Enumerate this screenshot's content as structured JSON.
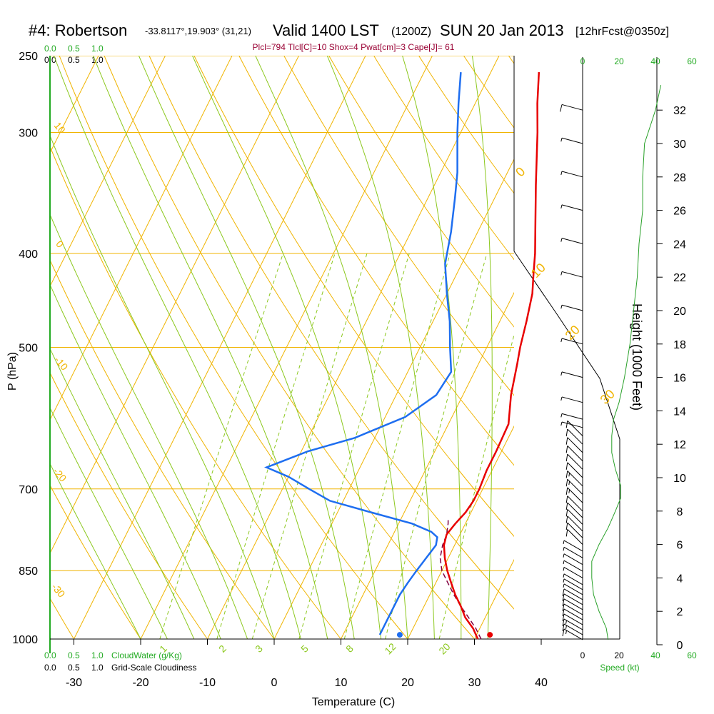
{
  "header": {
    "station": "#4: Robertson",
    "location": "-33.8117°,19.903° (31,21)",
    "valid": "Valid 1400 LST",
    "zulu": "(1200Z)",
    "date": "SUN 20 Jan 2013",
    "forecast": "[12hrFcst@0350z]",
    "indices": "Plcl=794 Tlcl[C]=10 Shox=4 Pwat[cm]=3 Cape[J]= 61"
  },
  "cloud_scale": {
    "top_green": [
      "0.0",
      "0.5",
      "1.0"
    ],
    "top_black": [
      "0.0",
      "0.5",
      "1.0"
    ],
    "bottom_green": [
      "0.0",
      "0.5",
      "1.0"
    ],
    "bottom_black": [
      "0.0",
      "0.5",
      "1.0"
    ],
    "cloudwater_label": "CloudWater (g/Kg)",
    "cloudiness_label": "Grid-Scale Cloudiness"
  },
  "colors": {
    "isotherm": "#f0b400",
    "dry_adiabat": "#f0b400",
    "moist_adiabat": "#8cc81e",
    "mixing_ratio": "#8cc81e",
    "temperature": "#e80000",
    "dewpoint": "#1e6ef0",
    "parcel": "#800040",
    "speed": "#28a028",
    "title": "#000000",
    "indices": "#990033",
    "green_text": "#22aa22"
  },
  "chart_data": {
    "type": "line",
    "xlabel": "Temperature (C)",
    "ylabel": "P (hPa)",
    "y2label": "Height (1000 Feet)",
    "speed_label": "Speed (kt)",
    "x_ticks": [
      "-30",
      "-20",
      "-10",
      "0",
      "10",
      "20",
      "30",
      "40"
    ],
    "x_tick_values": [
      -30,
      -20,
      -10,
      0,
      10,
      20,
      30,
      40
    ],
    "p_ticks": [
      "250",
      "300",
      "400",
      "500",
      "700",
      "850",
      "1000"
    ],
    "p_tick_values": [
      250,
      300,
      400,
      500,
      700,
      850,
      1000
    ],
    "height_ticks": [
      "0",
      "2",
      "4",
      "6",
      "8",
      "10",
      "12",
      "14",
      "16",
      "18",
      "20",
      "22",
      "24",
      "26",
      "28",
      "30",
      "32"
    ],
    "height_tick_values": [
      0,
      2,
      4,
      6,
      8,
      10,
      12,
      14,
      16,
      18,
      20,
      22,
      24,
      26,
      28,
      30,
      32
    ],
    "speed_ticks_top_black": [
      "0"
    ],
    "speed_ticks_top_green": [
      "20",
      "40",
      "60"
    ],
    "speed_ticks_bottom_black": [
      "0",
      "20",
      "40"
    ],
    "speed_ticks_bottom_green": [
      "60"
    ],
    "dry_adiabat_labels": [
      "10",
      "0",
      "-10",
      "-20",
      "-30"
    ],
    "moist_adiabat_labels": [
      "0",
      "10",
      "20",
      "30"
    ],
    "mixing_ratio_labels": [
      "1",
      "2",
      "3",
      "5",
      "8",
      "12",
      "20"
    ],
    "mixing_ratio_values": [
      1,
      2,
      3,
      5,
      8,
      12,
      20
    ],
    "temperature_profile": [
      {
        "p": 1000,
        "t": 30.5
      },
      {
        "p": 975,
        "t": 29.0
      },
      {
        "p": 950,
        "t": 27.0
      },
      {
        "p": 925,
        "t": 25.5
      },
      {
        "p": 900,
        "t": 23.8
      },
      {
        "p": 875,
        "t": 22.3
      },
      {
        "p": 850,
        "t": 20.8
      },
      {
        "p": 825,
        "t": 19.5
      },
      {
        "p": 800,
        "t": 18.4
      },
      {
        "p": 780,
        "t": 18.0
      },
      {
        "p": 760,
        "t": 18.5
      },
      {
        "p": 740,
        "t": 19.2
      },
      {
        "p": 720,
        "t": 19.5
      },
      {
        "p": 700,
        "t": 19.5
      },
      {
        "p": 670,
        "t": 19.2
      },
      {
        "p": 640,
        "t": 19.2
      },
      {
        "p": 600,
        "t": 19.0
      },
      {
        "p": 560,
        "t": 17.2
      },
      {
        "p": 520,
        "t": 15.8
      },
      {
        "p": 500,
        "t": 15.0
      },
      {
        "p": 470,
        "t": 14.0
      },
      {
        "p": 440,
        "t": 12.8
      },
      {
        "p": 420,
        "t": 11.5
      },
      {
        "p": 400,
        "t": 10.2
      },
      {
        "p": 370,
        "t": 7.8
      },
      {
        "p": 340,
        "t": 5.2
      },
      {
        "p": 300,
        "t": 1.5
      },
      {
        "p": 280,
        "t": -0.7
      },
      {
        "p": 260,
        "t": -2.8
      }
    ],
    "dewpoint_profile": [
      {
        "p": 990,
        "t": 15.5
      },
      {
        "p": 975,
        "t": 15.5
      },
      {
        "p": 950,
        "t": 15.5
      },
      {
        "p": 925,
        "t": 15.5
      },
      {
        "p": 900,
        "t": 15.5
      },
      {
        "p": 875,
        "t": 15.8
      },
      {
        "p": 850,
        "t": 16.2
      },
      {
        "p": 825,
        "t": 16.7
      },
      {
        "p": 800,
        "t": 17.2
      },
      {
        "p": 785,
        "t": 16.8
      },
      {
        "p": 775,
        "t": 15.5
      },
      {
        "p": 760,
        "t": 12.0
      },
      {
        "p": 740,
        "t": 5.0
      },
      {
        "p": 720,
        "t": -2.0
      },
      {
        "p": 700,
        "t": -6.0
      },
      {
        "p": 680,
        "t": -10.0
      },
      {
        "p": 665,
        "t": -14.0
      },
      {
        "p": 640,
        "t": -9.0
      },
      {
        "p": 620,
        "t": -3.0
      },
      {
        "p": 590,
        "t": 3.0
      },
      {
        "p": 560,
        "t": 6.0
      },
      {
        "p": 530,
        "t": 6.5
      },
      {
        "p": 500,
        "t": 4.5
      },
      {
        "p": 470,
        "t": 2.5
      },
      {
        "p": 440,
        "t": 0.0
      },
      {
        "p": 410,
        "t": -2.5
      },
      {
        "p": 380,
        "t": -4.0
      },
      {
        "p": 350,
        "t": -6.0
      },
      {
        "p": 330,
        "t": -7.5
      },
      {
        "p": 300,
        "t": -10.5
      },
      {
        "p": 280,
        "t": -12.5
      },
      {
        "p": 260,
        "t": -14.5
      }
    ],
    "parcel_profile": [
      {
        "p": 1000,
        "t": 31.0
      },
      {
        "p": 975,
        "t": 29.4
      },
      {
        "p": 950,
        "t": 27.5
      },
      {
        "p": 925,
        "t": 25.5
      },
      {
        "p": 900,
        "t": 23.6
      },
      {
        "p": 875,
        "t": 21.8
      },
      {
        "p": 850,
        "t": 20.0
      },
      {
        "p": 825,
        "t": 18.8
      },
      {
        "p": 800,
        "t": 18.2
      },
      {
        "p": 780,
        "t": 18.0
      },
      {
        "p": 760,
        "t": 17.4
      },
      {
        "p": 750,
        "t": 17.0
      }
    ],
    "surface_temperature": {
      "p": 990,
      "t": 32.0
    },
    "surface_dewpoint": {
      "p": 990,
      "t": 18.5
    },
    "winds": [
      {
        "h": 0.3,
        "kt": 14
      },
      {
        "h": 0.6,
        "kt": 14
      },
      {
        "h": 0.9,
        "kt": 14
      },
      {
        "h": 1.2,
        "kt": 12
      },
      {
        "h": 1.5,
        "kt": 12
      },
      {
        "h": 1.8,
        "kt": 10
      },
      {
        "h": 2.1,
        "kt": 10
      },
      {
        "h": 2.4,
        "kt": 8
      },
      {
        "h": 2.7,
        "kt": 8
      },
      {
        "h": 3.0,
        "kt": 6
      },
      {
        "h": 3.3,
        "kt": 6
      },
      {
        "h": 3.6,
        "kt": 5
      },
      {
        "h": 4.0,
        "kt": 5
      },
      {
        "h": 4.4,
        "kt": 5
      },
      {
        "h": 4.8,
        "kt": 5
      },
      {
        "h": 5.2,
        "kt": 6
      },
      {
        "h": 5.6,
        "kt": 7
      },
      {
        "h": 6.0,
        "kt": 8
      },
      {
        "h": 6.4,
        "kt": 9
      },
      {
        "h": 6.8,
        "kt": 10
      },
      {
        "h": 7.2,
        "kt": 10
      },
      {
        "h": 7.6,
        "kt": 11
      },
      {
        "h": 8.0,
        "kt": 12
      },
      {
        "h": 8.5,
        "kt": 13
      },
      {
        "h": 9.0,
        "kt": 13
      },
      {
        "h": 9.5,
        "kt": 13
      },
      {
        "h": 10.0,
        "kt": 12
      },
      {
        "h": 10.5,
        "kt": 11
      },
      {
        "h": 11.0,
        "kt": 11
      },
      {
        "h": 11.5,
        "kt": 10
      },
      {
        "h": 12.0,
        "kt": 9
      },
      {
        "h": 12.5,
        "kt": 8
      },
      {
        "h": 13.0,
        "kt": 7
      },
      {
        "h": 13.5,
        "kt": 7
      },
      {
        "h": 14.5,
        "kt": 6
      },
      {
        "h": 16.0,
        "kt": 6
      },
      {
        "h": 18.0,
        "kt": 5
      },
      {
        "h": 20.0,
        "kt": 5
      },
      {
        "h": 22.0,
        "kt": 5
      },
      {
        "h": 24.0,
        "kt": 6
      },
      {
        "h": 26.0,
        "kt": 6
      },
      {
        "h": 28.0,
        "kt": 7
      },
      {
        "h": 30.0,
        "kt": 7
      },
      {
        "h": 32.0,
        "kt": 8
      }
    ],
    "speed_profile": [
      {
        "h": 0.3,
        "kt": 14
      },
      {
        "h": 1.0,
        "kt": 13
      },
      {
        "h": 2.0,
        "kt": 9
      },
      {
        "h": 3.0,
        "kt": 6
      },
      {
        "h": 4.0,
        "kt": 5
      },
      {
        "h": 5.0,
        "kt": 5
      },
      {
        "h": 6.0,
        "kt": 9
      },
      {
        "h": 7.0,
        "kt": 14
      },
      {
        "h": 8.0,
        "kt": 18
      },
      {
        "h": 8.8,
        "kt": 21
      },
      {
        "h": 9.5,
        "kt": 21
      },
      {
        "h": 10.5,
        "kt": 18
      },
      {
        "h": 11.5,
        "kt": 16
      },
      {
        "h": 12.5,
        "kt": 16
      },
      {
        "h": 13.5,
        "kt": 17
      },
      {
        "h": 14.5,
        "kt": 20
      },
      {
        "h": 16.0,
        "kt": 23
      },
      {
        "h": 18.0,
        "kt": 26
      },
      {
        "h": 20.0,
        "kt": 28
      },
      {
        "h": 22.0,
        "kt": 30
      },
      {
        "h": 24.0,
        "kt": 31
      },
      {
        "h": 26.0,
        "kt": 33
      },
      {
        "h": 28.0,
        "kt": 33
      },
      {
        "h": 30.0,
        "kt": 34
      },
      {
        "h": 31.0,
        "kt": 37
      },
      {
        "h": 32.0,
        "kt": 40
      },
      {
        "h": 33.5,
        "kt": 43
      }
    ]
  }
}
